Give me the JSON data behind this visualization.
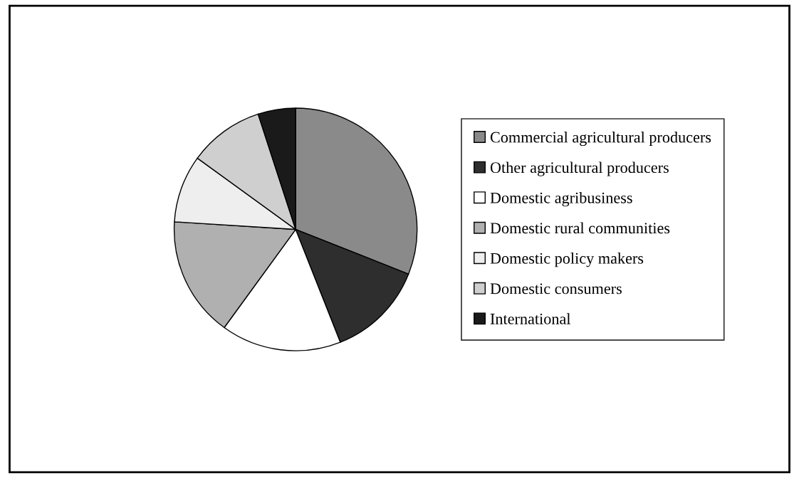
{
  "chart_data": {
    "type": "pie",
    "categories": [
      "Commercial agricultural producers",
      "Other agricultural producers",
      "Domestic agribusiness",
      "Domestic rural communities",
      "Domestic policy makers",
      "Domestic consumers",
      "International"
    ],
    "values": [
      31,
      13,
      16,
      16,
      9,
      10,
      5
    ],
    "colors": [
      "#8a8a8a",
      "#2e2e2e",
      "#ffffff",
      "#b0b0b0",
      "#eeeeee",
      "#cfcfcf",
      "#1a1a1a"
    ],
    "legend": "right"
  }
}
